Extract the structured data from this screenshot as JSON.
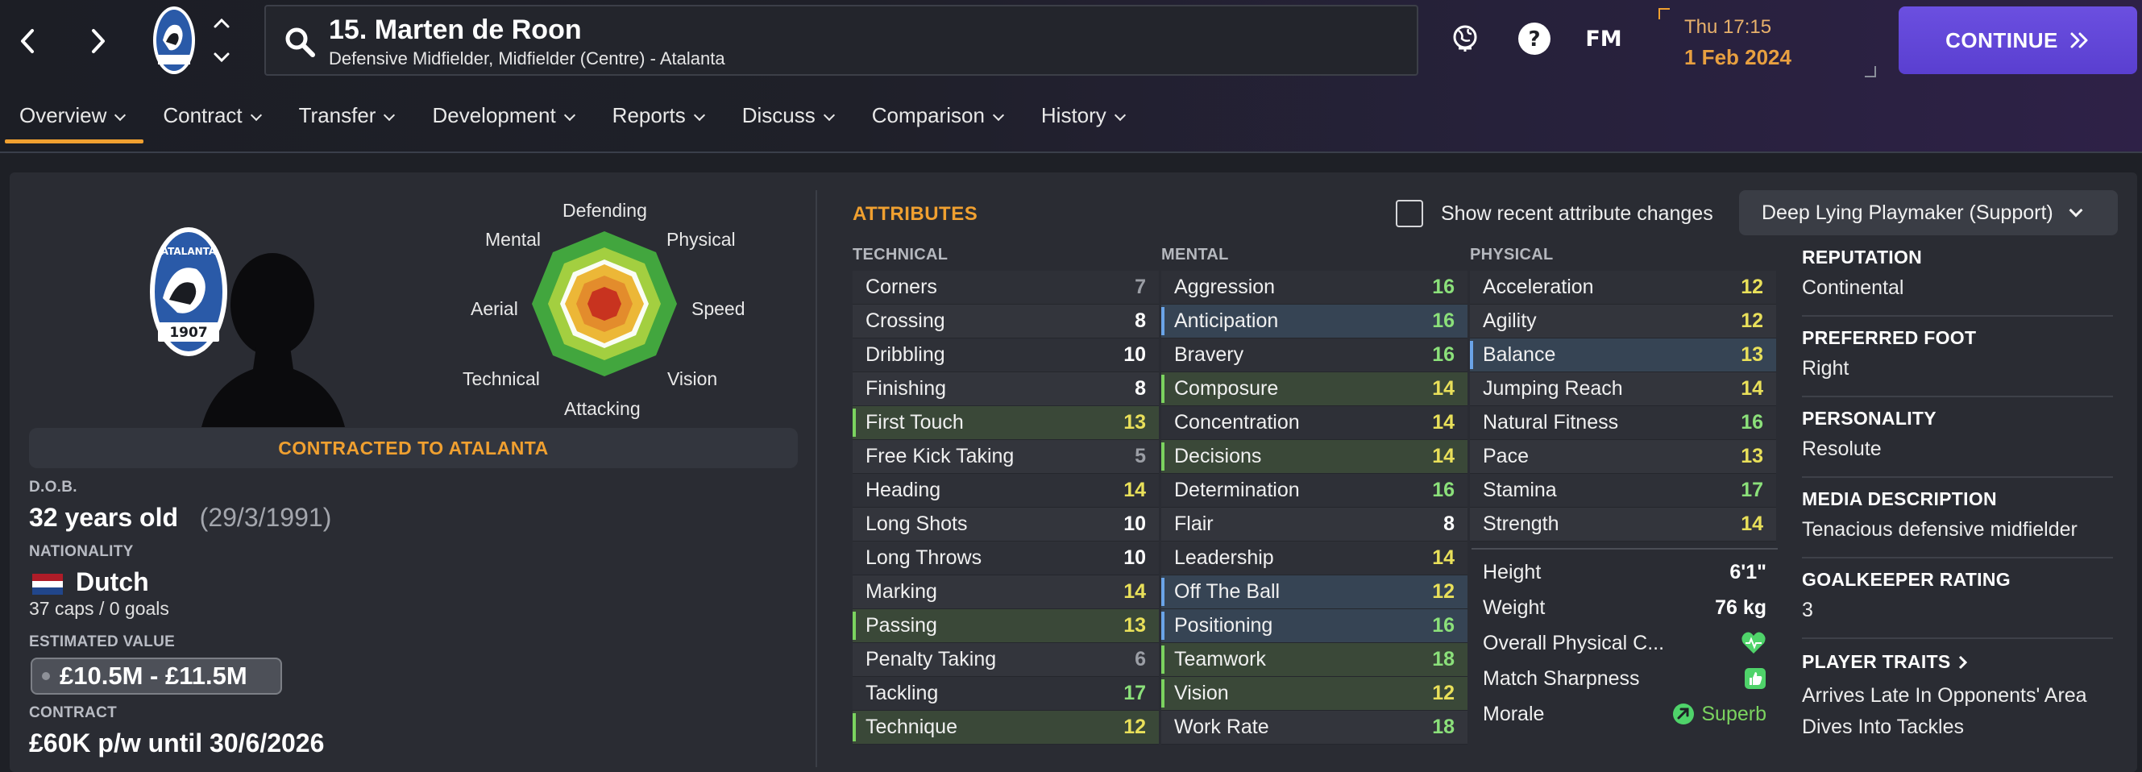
{
  "header": {
    "player_name": "15. Marten de Roon",
    "player_positions": "Defensive Midfielder, Midfielder (Centre) - Atalanta",
    "fm_logo": "FM",
    "date_day": "Thu 17:15",
    "date_date": "1 Feb 2024",
    "continue_label": "CONTINUE",
    "icons": [
      "back-arrow-icon",
      "forward-arrow-icon",
      "club-crest-icon",
      "up-chevron-icon",
      "down-chevron-icon",
      "search-icon",
      "world-icon",
      "help-icon",
      "double-chevron-right-icon"
    ]
  },
  "tabs": [
    {
      "label": "Overview"
    },
    {
      "label": "Contract"
    },
    {
      "label": "Transfer"
    },
    {
      "label": "Development"
    },
    {
      "label": "Reports"
    },
    {
      "label": "Discuss"
    },
    {
      "label": "Comparison"
    },
    {
      "label": "History"
    }
  ],
  "radar": {
    "labels": {
      "defending": "Defending",
      "physical": "Physical",
      "speed": "Speed",
      "vision": "Vision",
      "attacking": "Attacking",
      "technical": "Technical",
      "aerial": "Aerial",
      "mental": "Mental"
    }
  },
  "profile": {
    "contract_banner": "CONTRACTED TO ATALANTA",
    "dob_label": "D.O.B.",
    "age": "32 years old",
    "dob": "(29/3/1991)",
    "nationality_label": "NATIONALITY",
    "nationality": "Dutch",
    "caps": "37 caps / 0 goals",
    "value_label": "ESTIMATED VALUE",
    "value": "£10.5M - £11.5M",
    "contract_label": "CONTRACT",
    "contract": "£60K p/w until 30/6/2026",
    "crest_text_top": "ATALANTA",
    "crest_text_bottom": "1907"
  },
  "attributes": {
    "title": "ATTRIBUTES",
    "show_changes_label": "Show recent attribute changes",
    "role": "Deep Lying Playmaker (Support)",
    "technical_header": "TECHNICAL",
    "mental_header": "MENTAL",
    "physical_header": "PHYSICAL",
    "technical": [
      {
        "name": "Corners",
        "value": "7",
        "hl": ""
      },
      {
        "name": "Crossing",
        "value": "8",
        "hl": ""
      },
      {
        "name": "Dribbling",
        "value": "10",
        "hl": ""
      },
      {
        "name": "Finishing",
        "value": "8",
        "hl": ""
      },
      {
        "name": "First Touch",
        "value": "13",
        "hl": "g"
      },
      {
        "name": "Free Kick Taking",
        "value": "5",
        "hl": ""
      },
      {
        "name": "Heading",
        "value": "14",
        "hl": ""
      },
      {
        "name": "Long Shots",
        "value": "10",
        "hl": ""
      },
      {
        "name": "Long Throws",
        "value": "10",
        "hl": ""
      },
      {
        "name": "Marking",
        "value": "14",
        "hl": ""
      },
      {
        "name": "Passing",
        "value": "13",
        "hl": "g"
      },
      {
        "name": "Penalty Taking",
        "value": "6",
        "hl": ""
      },
      {
        "name": "Tackling",
        "value": "17",
        "hl": ""
      },
      {
        "name": "Technique",
        "value": "12",
        "hl": "g"
      }
    ],
    "mental": [
      {
        "name": "Aggression",
        "value": "16",
        "hl": ""
      },
      {
        "name": "Anticipation",
        "value": "16",
        "hl": "b"
      },
      {
        "name": "Bravery",
        "value": "16",
        "hl": ""
      },
      {
        "name": "Composure",
        "value": "14",
        "hl": "g"
      },
      {
        "name": "Concentration",
        "value": "14",
        "hl": ""
      },
      {
        "name": "Decisions",
        "value": "14",
        "hl": "g"
      },
      {
        "name": "Determination",
        "value": "16",
        "hl": ""
      },
      {
        "name": "Flair",
        "value": "8",
        "hl": ""
      },
      {
        "name": "Leadership",
        "value": "14",
        "hl": ""
      },
      {
        "name": "Off The Ball",
        "value": "12",
        "hl": "b"
      },
      {
        "name": "Positioning",
        "value": "16",
        "hl": "b"
      },
      {
        "name": "Teamwork",
        "value": "18",
        "hl": "g"
      },
      {
        "name": "Vision",
        "value": "12",
        "hl": "g"
      },
      {
        "name": "Work Rate",
        "value": "18",
        "hl": ""
      }
    ],
    "physical": [
      {
        "name": "Acceleration",
        "value": "12",
        "hl": ""
      },
      {
        "name": "Agility",
        "value": "12",
        "hl": ""
      },
      {
        "name": "Balance",
        "value": "13",
        "hl": "b"
      },
      {
        "name": "Jumping Reach",
        "value": "14",
        "hl": ""
      },
      {
        "name": "Natural Fitness",
        "value": "16",
        "hl": ""
      },
      {
        "name": "Pace",
        "value": "13",
        "hl": ""
      },
      {
        "name": "Stamina",
        "value": "17",
        "hl": ""
      },
      {
        "name": "Strength",
        "value": "14",
        "hl": ""
      }
    ],
    "physical_info": {
      "height_label": "Height",
      "height": "6'1\"",
      "weight_label": "Weight",
      "weight": "76 kg",
      "overall_label": "Overall Physical C...",
      "sharpness_label": "Match Sharpness",
      "morale_label": "Morale",
      "morale": "Superb"
    }
  },
  "info": {
    "reputation_label": "REPUTATION",
    "reputation": "Continental",
    "foot_label": "PREFERRED FOOT",
    "foot": "Right",
    "personality_label": "PERSONALITY",
    "personality": "Resolute",
    "media_label": "MEDIA DESCRIPTION",
    "media": "Tenacious defensive midfielder",
    "gk_label": "GOALKEEPER RATING",
    "gk": "3",
    "traits_label": "PLAYER TRAITS",
    "traits": [
      "Arrives Late In Opponents' Area",
      "Dives Into Tackles"
    ]
  },
  "colors": {
    "accent_orange": "#f0a030",
    "continue_purple": "#5a3fd0",
    "good_green": "#7bd35f",
    "key_blue": "#6aa4e8"
  }
}
